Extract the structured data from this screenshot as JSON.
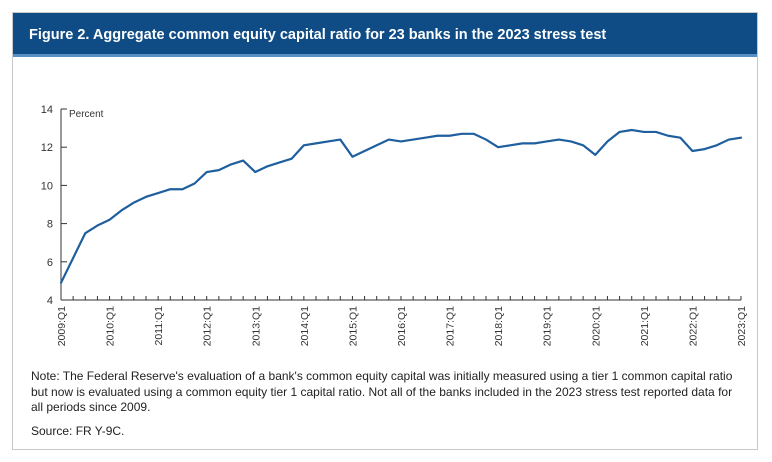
{
  "figure": {
    "title": "Figure 2. Aggregate common equity capital ratio for 23 banks in the 2023 stress test",
    "note": "Note: The Federal Reserve's evaluation of a bank's common equity capital was initially measured using a tier 1 common capital ratio but now is evaluated using a common equity tier 1 capital ratio. Not all of the banks included in the 2023 stress test reported data for all periods since 2009.",
    "source": "Source: FR Y-9C.",
    "colors": {
      "title_bar": "#0f4c85",
      "line": "#1f5f9e"
    }
  },
  "chart_data": {
    "type": "line",
    "title": "Figure 2. Aggregate common equity capital ratio for 23 banks in the 2023 stress test",
    "ylabel": "Percent",
    "xlabel": "",
    "ylim": [
      4,
      14
    ],
    "yticks": [
      4,
      6,
      8,
      10,
      12,
      14
    ],
    "xticks": [
      "2009:Q1",
      "2010:Q1",
      "2011:Q1",
      "2012:Q1",
      "2013:Q1",
      "2014:Q1",
      "2015:Q1",
      "2016:Q1",
      "2017:Q1",
      "2018:Q1",
      "2019:Q1",
      "2020:Q1",
      "2021:Q1",
      "2022:Q1",
      "2023:Q1"
    ],
    "grid": false,
    "x": [
      "2009:Q1",
      "2009:Q2",
      "2009:Q3",
      "2009:Q4",
      "2010:Q1",
      "2010:Q2",
      "2010:Q3",
      "2010:Q4",
      "2011:Q1",
      "2011:Q2",
      "2011:Q3",
      "2011:Q4",
      "2012:Q1",
      "2012:Q2",
      "2012:Q3",
      "2012:Q4",
      "2013:Q1",
      "2013:Q2",
      "2013:Q3",
      "2013:Q4",
      "2014:Q1",
      "2014:Q2",
      "2014:Q3",
      "2014:Q4",
      "2015:Q1",
      "2015:Q2",
      "2015:Q3",
      "2015:Q4",
      "2016:Q1",
      "2016:Q2",
      "2016:Q3",
      "2016:Q4",
      "2017:Q1",
      "2017:Q2",
      "2017:Q3",
      "2017:Q4",
      "2018:Q1",
      "2018:Q2",
      "2018:Q3",
      "2018:Q4",
      "2019:Q1",
      "2019:Q2",
      "2019:Q3",
      "2019:Q4",
      "2020:Q1",
      "2020:Q2",
      "2020:Q3",
      "2020:Q4",
      "2021:Q1",
      "2021:Q2",
      "2021:Q3",
      "2021:Q4",
      "2022:Q1",
      "2022:Q2",
      "2022:Q3",
      "2022:Q4",
      "2023:Q1"
    ],
    "series": [
      {
        "values": [
          4.9,
          6.2,
          7.5,
          7.9,
          8.2,
          8.7,
          9.1,
          9.4,
          9.6,
          9.8,
          9.8,
          10.1,
          10.7,
          10.8,
          11.1,
          11.3,
          10.7,
          11.0,
          11.2,
          11.4,
          12.1,
          12.2,
          12.3,
          12.4,
          11.5,
          11.8,
          12.1,
          12.4,
          12.3,
          12.4,
          12.5,
          12.6,
          12.6,
          12.7,
          12.7,
          12.4,
          12.0,
          12.1,
          12.2,
          12.2,
          12.3,
          12.4,
          12.3,
          12.1,
          11.6,
          12.3,
          12.8,
          12.9,
          12.8,
          12.8,
          12.6,
          12.5,
          11.8,
          11.9,
          12.1,
          12.4,
          12.5
        ]
      }
    ]
  }
}
